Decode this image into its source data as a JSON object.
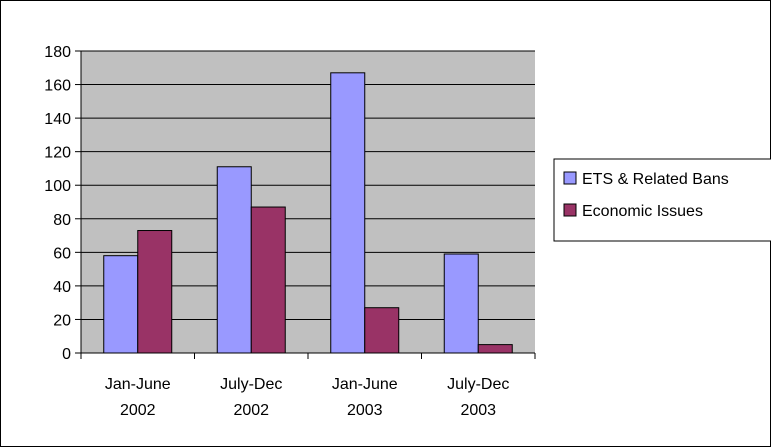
{
  "chart_data": {
    "type": "bar",
    "categories": [
      [
        "Jan-June",
        "2002"
      ],
      [
        "July-Dec",
        "2002"
      ],
      [
        "Jan-June",
        "2003"
      ],
      [
        "July-Dec",
        "2003"
      ]
    ],
    "series": [
      {
        "name": "ETS & Related Bans",
        "values": [
          58,
          111,
          167,
          59
        ],
        "color": "#9999ff"
      },
      {
        "name": "Economic Issues",
        "values": [
          73,
          87,
          27,
          5
        ],
        "color": "#993366"
      }
    ],
    "ylim": [
      0,
      180
    ],
    "yticks": [
      0,
      20,
      40,
      60,
      80,
      100,
      120,
      140,
      160,
      180
    ],
    "grid": true,
    "plot_background": "#c0c0c0",
    "legend_position": "right"
  }
}
